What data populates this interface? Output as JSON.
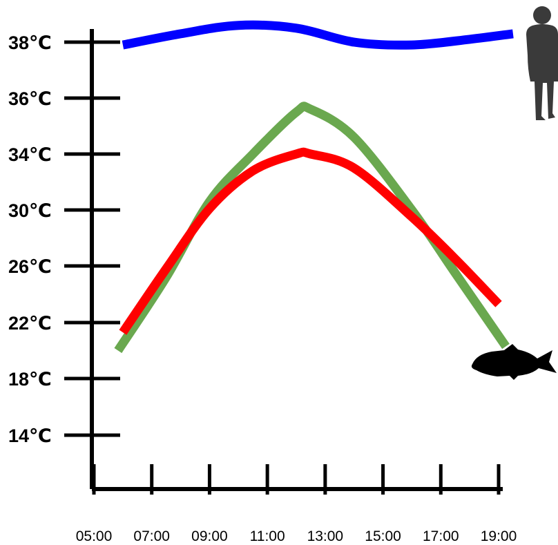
{
  "chart_data": {
    "type": "line",
    "title": "",
    "xlabel": "",
    "ylabel": "",
    "y_ticks": [
      "38℃",
      "36℃",
      "34℃",
      "30℃",
      "26℃",
      "22℃",
      "18℃",
      "14℃"
    ],
    "x_ticks": [
      "05:00",
      "07:00",
      "09:00",
      "11:00",
      "13:00",
      "15:00",
      "17:00",
      "19:00"
    ],
    "grid": false,
    "series": [
      {
        "color": "#0000ff",
        "x": [
          "06:00",
          "08:00",
          "10:00",
          "12:00",
          "14:00",
          "16:00",
          "18:00",
          "19:30"
        ],
        "values": [
          37.9,
          38.3,
          38.6,
          38.5,
          38.0,
          37.9,
          38.1,
          38.3
        ]
      },
      {
        "color": "#6aa84f",
        "x": [
          "05:50",
          "07:30",
          "09:00",
          "10:30",
          "12:00",
          "12:30",
          "14:00",
          "16:00",
          "17:30",
          "19:15"
        ],
        "values": [
          20.0,
          25.2,
          30.6,
          34.0,
          35.5,
          35.6,
          34.6,
          30.0,
          25.5,
          20.3
        ]
      },
      {
        "color": "#ff0000",
        "x": [
          "06:00",
          "07:30",
          "09:00",
          "10:30",
          "12:00",
          "12:30",
          "14:00",
          "16:00",
          "17:30",
          "19:00"
        ],
        "values": [
          21.3,
          25.8,
          30.1,
          32.8,
          34.0,
          34.0,
          33.0,
          29.5,
          26.5,
          23.3
        ]
      }
    ]
  },
  "icons": {
    "person": "person-silhouette-icon",
    "fish": "fish-silhouette-icon"
  }
}
